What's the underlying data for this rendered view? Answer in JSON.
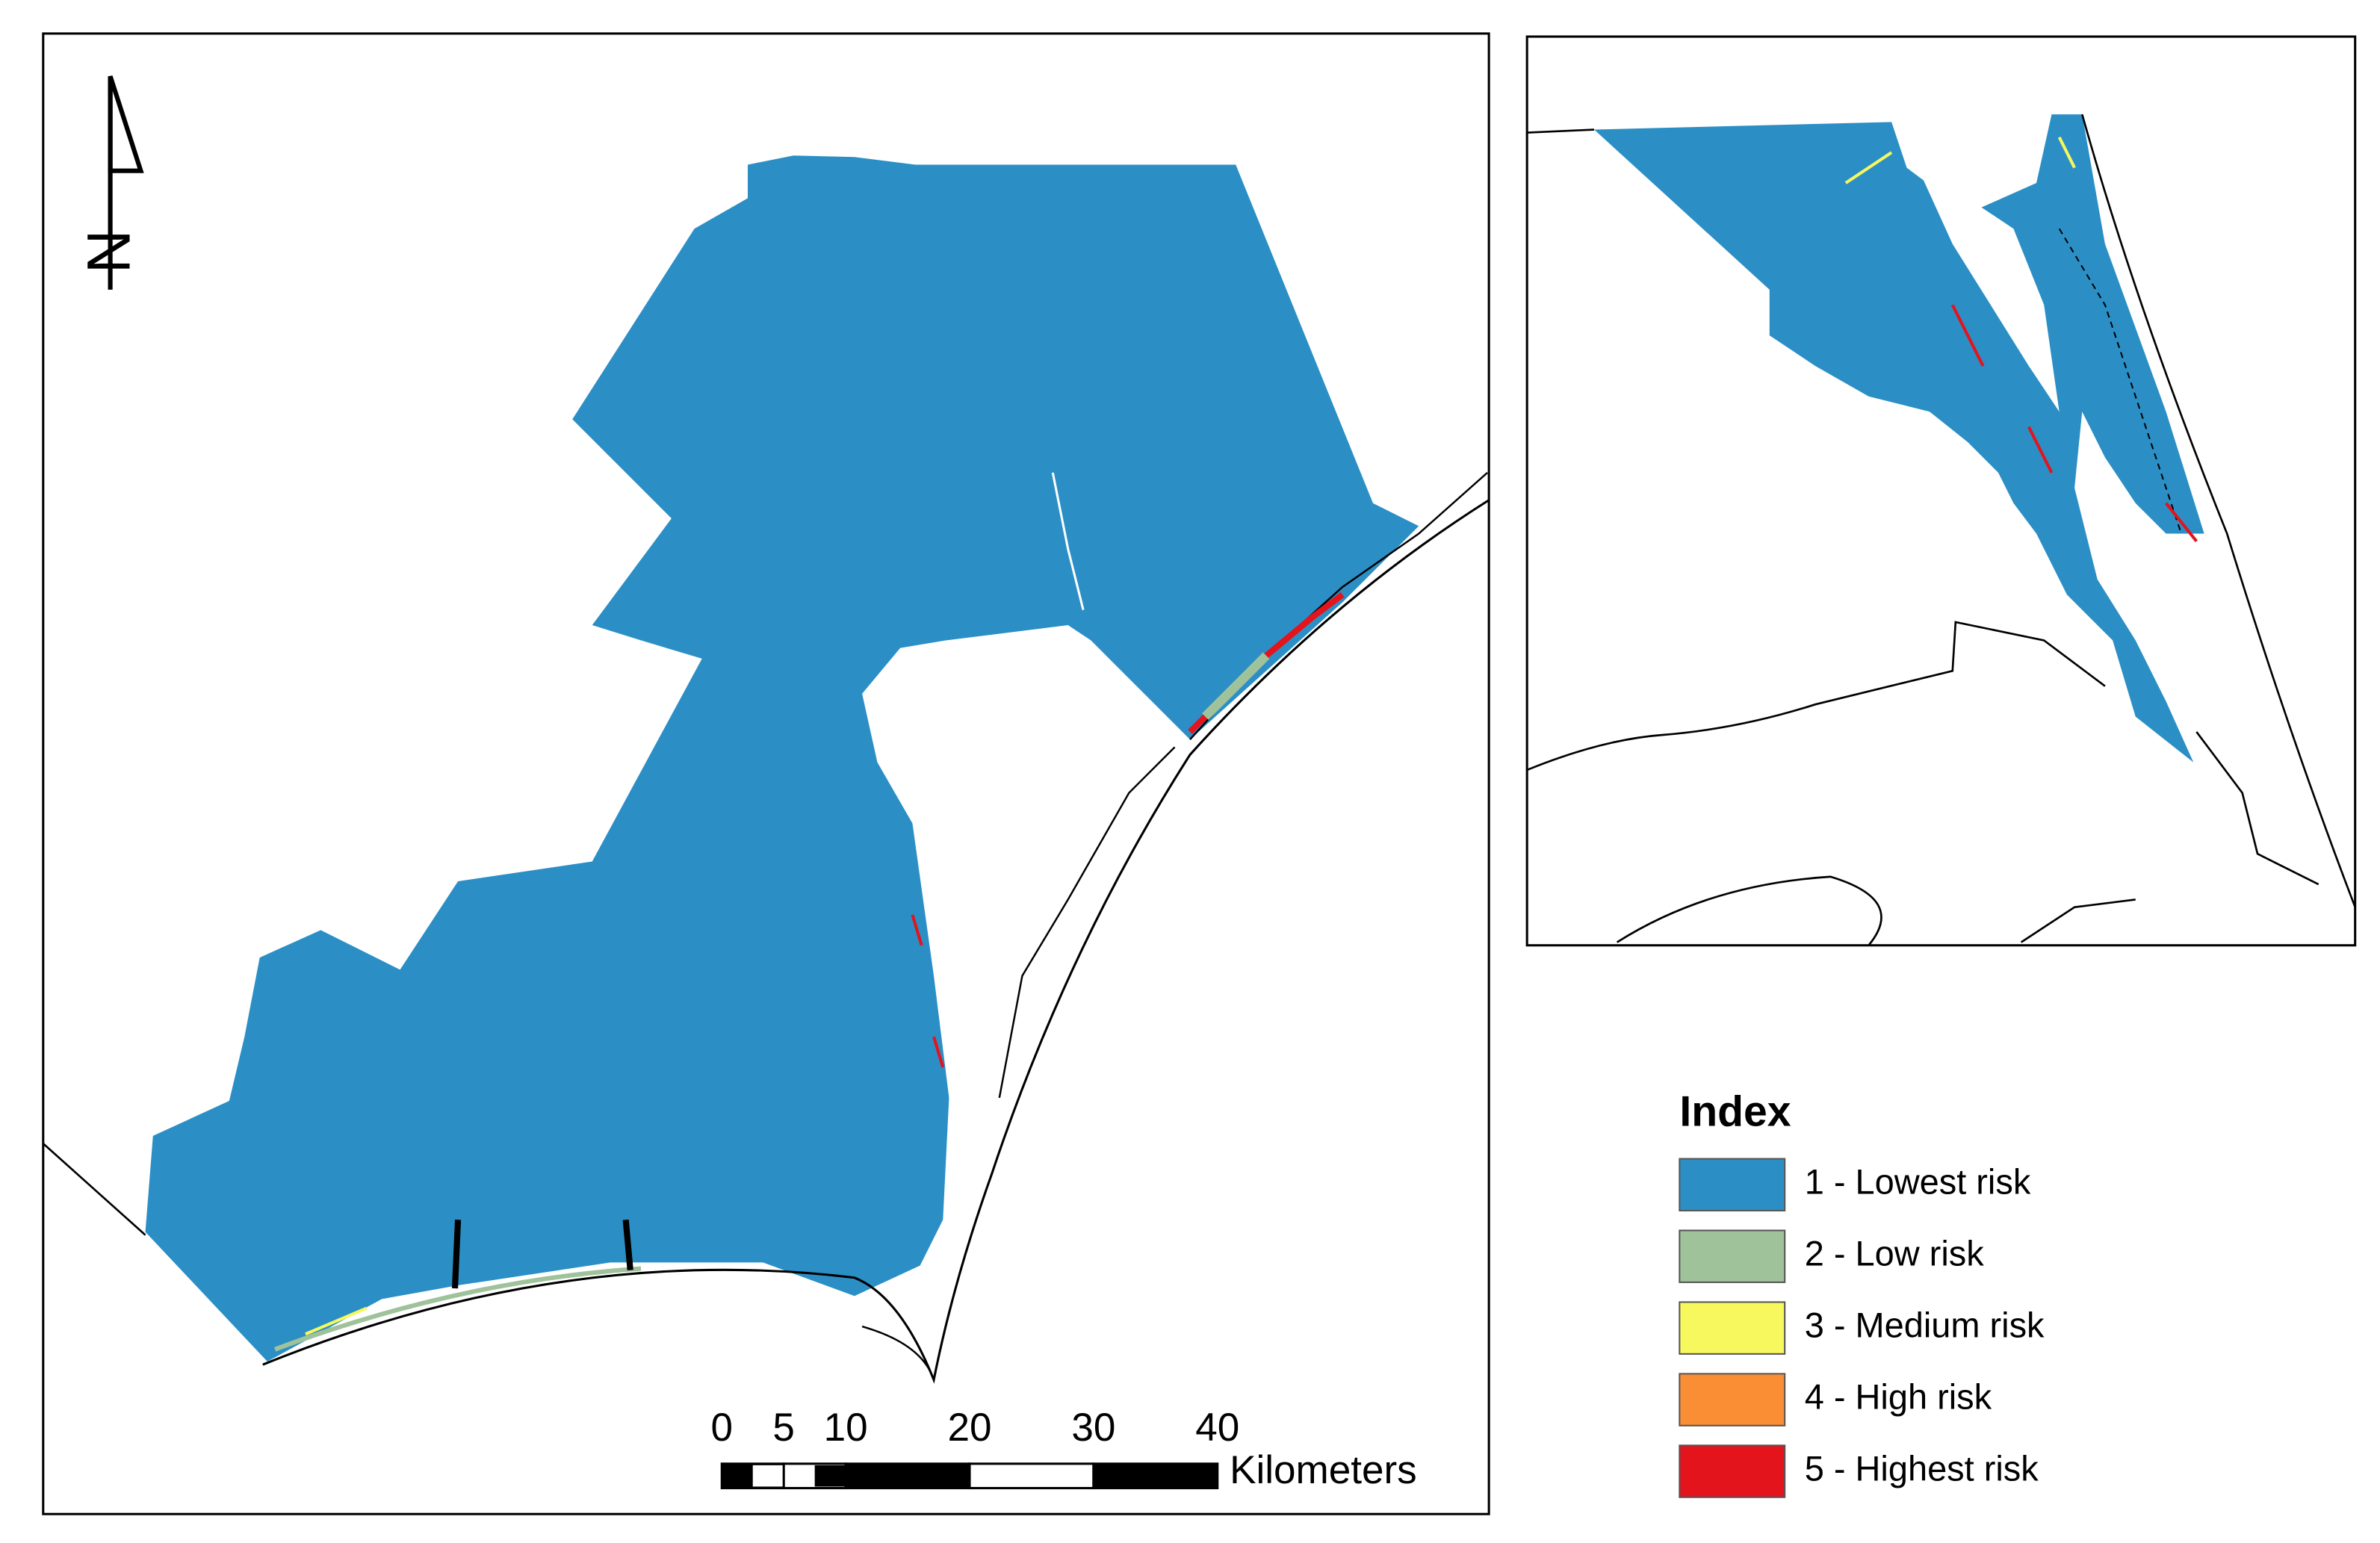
{
  "north_arrow": {
    "label": "N"
  },
  "scale_bar": {
    "ticks": [
      0,
      5,
      10,
      20,
      30,
      40
    ],
    "unit": "Kilometers"
  },
  "legend": {
    "title": "Index",
    "items": [
      {
        "label": "1 - Lowest risk",
        "color": "#2b8fc6"
      },
      {
        "label": "2 - Low risk",
        "color": "#9fc29b"
      },
      {
        "label": "3 - Medium risk",
        "color": "#f7f75e"
      },
      {
        "label": "4 - High risk",
        "color": "#f98e34"
      },
      {
        "label": "5 - Highest risk",
        "color": "#e3141c"
      }
    ]
  }
}
